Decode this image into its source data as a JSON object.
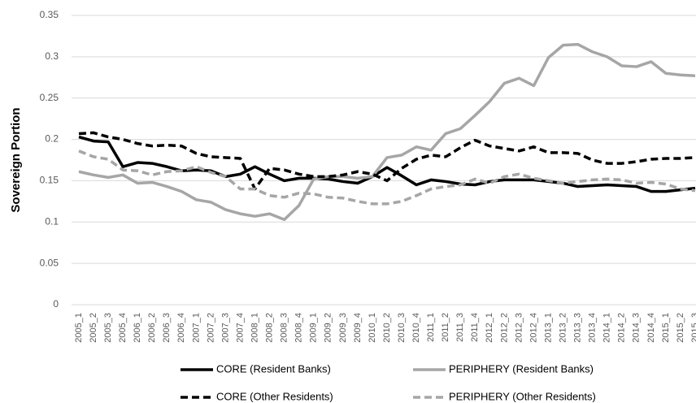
{
  "chart_data": {
    "type": "line",
    "y_label": "Sovereign Portion",
    "categories": [
      "2005_1",
      "2005_2",
      "2005_3",
      "2005_4",
      "2006_1",
      "2006_2",
      "2006_3",
      "2006_4",
      "2007_1",
      "2007_2",
      "2007_3",
      "2007_4",
      "2008_1",
      "2008_2",
      "2008_3",
      "2008_4",
      "2009_1",
      "2009_2",
      "2009_3",
      "2009_4",
      "2010_1",
      "2010_2",
      "2010_3",
      "2010_4",
      "2011_1",
      "2011_2",
      "2011_3",
      "2011_4",
      "2012_1",
      "2012_2",
      "2012_3",
      "2012_4",
      "2013_1",
      "2013_2",
      "2013_3",
      "2013_4",
      "2014_1",
      "2014_2",
      "2014_3",
      "2014_4",
      "2015_1",
      "2015_2",
      "2015_3"
    ],
    "series": [
      {
        "name": "CORE (Resident Banks)",
        "color": "#000000",
        "dashed": false,
        "values": [
          0.203,
          0.198,
          0.197,
          0.167,
          0.172,
          0.171,
          0.167,
          0.162,
          0.163,
          0.162,
          0.155,
          0.158,
          0.167,
          0.158,
          0.15,
          0.153,
          0.153,
          0.152,
          0.149,
          0.147,
          0.155,
          0.166,
          0.156,
          0.145,
          0.151,
          0.149,
          0.146,
          0.145,
          0.149,
          0.151,
          0.151,
          0.151,
          0.149,
          0.147,
          0.143,
          0.144,
          0.145,
          0.144,
          0.143,
          0.137,
          0.137,
          0.139,
          0.141
        ]
      },
      {
        "name": "PERIPHERY (Resident Banks)",
        "color": "#a6a6a6",
        "dashed": false,
        "values": [
          0.161,
          0.157,
          0.154,
          0.157,
          0.147,
          0.148,
          0.143,
          0.137,
          0.127,
          0.124,
          0.115,
          0.11,
          0.107,
          0.11,
          0.103,
          0.12,
          0.152,
          0.155,
          0.155,
          0.153,
          0.155,
          0.178,
          0.181,
          0.191,
          0.187,
          0.207,
          0.213,
          0.229,
          0.246,
          0.268,
          0.274,
          0.265,
          0.299,
          0.314,
          0.315,
          0.306,
          0.3,
          0.289,
          0.288,
          0.294,
          0.28,
          0.278,
          0.277
        ]
      },
      {
        "name": "CORE (Other Residents)",
        "color": "#000000",
        "dashed": true,
        "values": [
          0.207,
          0.208,
          0.203,
          0.2,
          0.195,
          0.192,
          0.193,
          0.192,
          0.183,
          0.179,
          0.178,
          0.177,
          0.14,
          0.165,
          0.163,
          0.158,
          0.155,
          0.155,
          0.157,
          0.161,
          0.158,
          0.15,
          0.165,
          0.176,
          0.181,
          0.179,
          0.19,
          0.199,
          0.192,
          0.189,
          0.186,
          0.191,
          0.184,
          0.184,
          0.183,
          0.175,
          0.171,
          0.171,
          0.173,
          0.176,
          0.177,
          0.177,
          0.178
        ]
      },
      {
        "name": "PERIPHERY (Other Residents)",
        "color": "#a6a6a6",
        "dashed": true,
        "values": [
          0.186,
          0.179,
          0.176,
          0.163,
          0.162,
          0.157,
          0.161,
          0.162,
          0.167,
          0.16,
          0.155,
          0.14,
          0.14,
          0.132,
          0.13,
          0.135,
          0.134,
          0.13,
          0.129,
          0.125,
          0.122,
          0.122,
          0.125,
          0.132,
          0.14,
          0.143,
          0.145,
          0.152,
          0.147,
          0.155,
          0.158,
          0.153,
          0.15,
          0.147,
          0.149,
          0.151,
          0.152,
          0.151,
          0.147,
          0.148,
          0.146,
          0.14,
          0.138
        ]
      }
    ],
    "ylim": [
      0,
      0.35
    ],
    "yticks": [
      0,
      0.05,
      0.1,
      0.15,
      0.2,
      0.25,
      0.3,
      0.35
    ],
    "grid": true
  }
}
